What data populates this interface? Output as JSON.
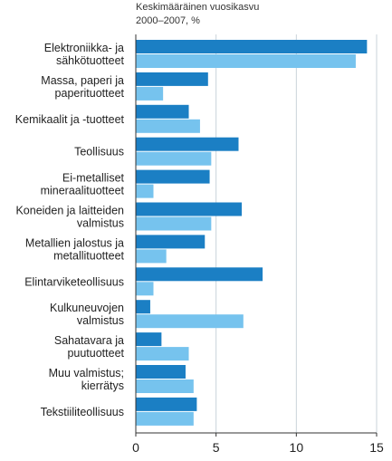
{
  "chart_data": {
    "type": "bar",
    "orientation": "horizontal",
    "subtitle_lines": [
      "Keskimääräinen vuosikasvu",
      "2000–2007, %"
    ],
    "categories": [
      [
        "Elektroniikka- ja",
        "sähkötuotteet"
      ],
      [
        "Massa, paperi ja",
        "paperituotteet"
      ],
      [
        "Kemikaalit ja -tuotteet"
      ],
      [
        "Teollisuus"
      ],
      [
        "Ei-metalliset",
        "mineraalituotteet"
      ],
      [
        "Koneiden ja laitteiden",
        "valmistus"
      ],
      [
        "Metallien jalostus ja",
        "metallituotteet"
      ],
      [
        "Elintarviketeollisuus"
      ],
      [
        "Kulkuneuvojen",
        "valmistus"
      ],
      [
        "Sahatavara ja",
        "puutuotteet"
      ],
      [
        "Muu valmistus;",
        "kierrätys"
      ],
      [
        "Tekstiiliteollisuus"
      ]
    ],
    "series": [
      {
        "values": [
          14.4,
          4.5,
          3.3,
          6.4,
          4.6,
          6.6,
          4.3,
          7.9,
          0.9,
          1.6,
          3.1,
          3.8
        ]
      },
      {
        "values": [
          13.7,
          1.7,
          4.0,
          4.7,
          1.1,
          4.7,
          1.9,
          1.1,
          6.7,
          3.3,
          3.6,
          3.6
        ]
      }
    ],
    "xlim": [
      0,
      15
    ],
    "xticks": [
      0,
      5,
      10,
      15
    ],
    "grid": true,
    "colors": {
      "series1": "#1b7fc4",
      "series2": "#76c3ee",
      "grid": "#c9d3da",
      "axis": "#333333"
    }
  }
}
